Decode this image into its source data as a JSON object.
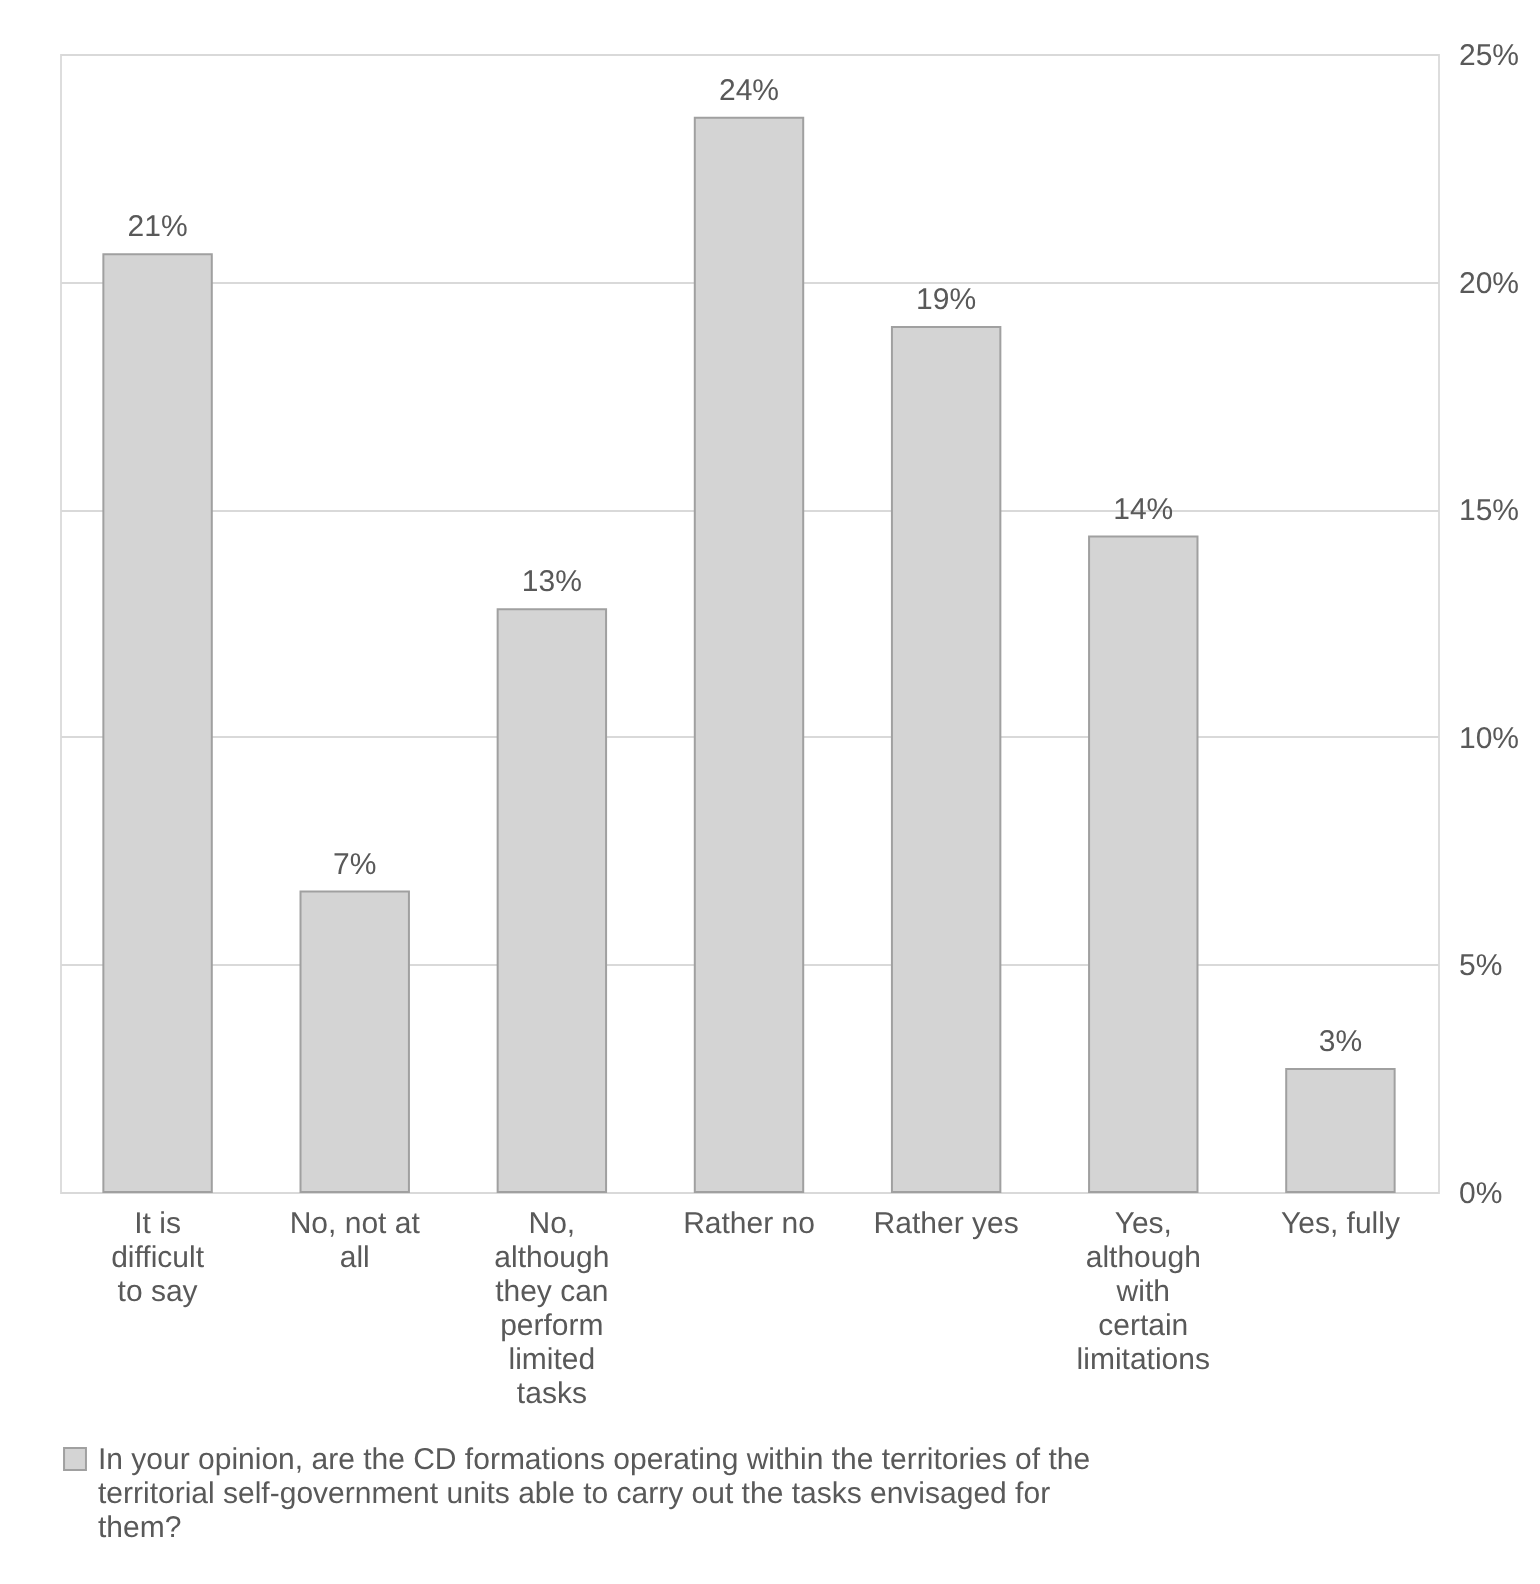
{
  "chart_data": {
    "type": "bar",
    "categories": [
      "It is difficult to say",
      "No, not at all",
      "No, although they can perform limited tasks",
      "Rather no",
      "Rather yes",
      "Yes, although with certain limitations",
      "Yes, fully"
    ],
    "series": [
      {
        "name": "In your opinion, are the CD formations operating within the territories of the territorial self-government units able to carry out the tasks envisaged for them?",
        "color": "#d4d4d4",
        "values": [
          20.6,
          6.6,
          12.8,
          23.6,
          19.0,
          14.4,
          2.7
        ],
        "value_labels": [
          "21%",
          "7%",
          "13%",
          "24%",
          "19%",
          "14%",
          "3%"
        ]
      }
    ],
    "ylim": [
      0,
      25
    ],
    "yticks": [
      {
        "value": 0,
        "label": "0%"
      },
      {
        "value": 5,
        "label": "5%"
      },
      {
        "value": 10,
        "label": "10%"
      },
      {
        "value": 15,
        "label": "15%"
      },
      {
        "value": 20,
        "label": "20%"
      },
      {
        "value": 25,
        "label": "25%"
      }
    ],
    "grid": "y",
    "legend": "bottom"
  }
}
